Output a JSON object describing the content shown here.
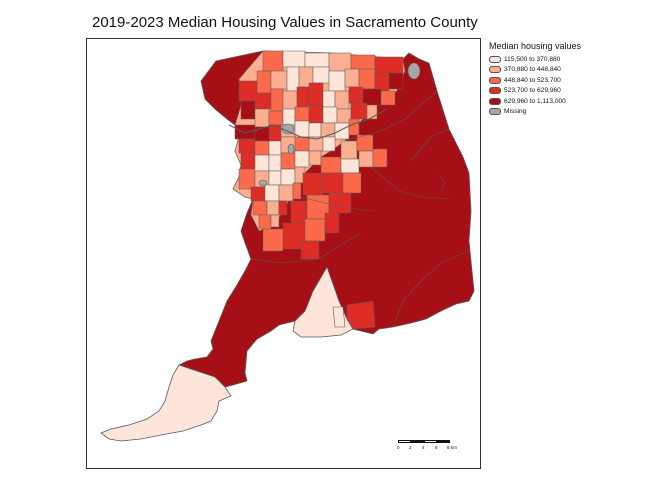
{
  "title": "2019-2023 Median Housing Values in Sacramento County",
  "legend": {
    "title": "Median housing values",
    "items": [
      {
        "label": "115,500 to 370,880",
        "color": "#fee5d9"
      },
      {
        "label": "370,880 to 448,840",
        "color": "#fcae91"
      },
      {
        "label": "448,840 to 523,700",
        "color": "#fb6a4a"
      },
      {
        "label": "523,700 to 629,960",
        "color": "#de2d26"
      },
      {
        "label": "629,960 to 1,113,000",
        "color": "#a50f15"
      },
      {
        "label": "Missing",
        "color": "#a6a6a6"
      }
    ]
  },
  "scalebar": {
    "ticks": [
      "0",
      "2",
      "4",
      "6",
      "8 km"
    ]
  },
  "colors": {
    "border": "#5a5a5a",
    "dark_red": "#a50f15",
    "red": "#de2d26",
    "orange": "#fb6a4a",
    "light_orange": "#fcae91",
    "pale": "#fee5d9",
    "missing": "#a6a6a6"
  }
}
